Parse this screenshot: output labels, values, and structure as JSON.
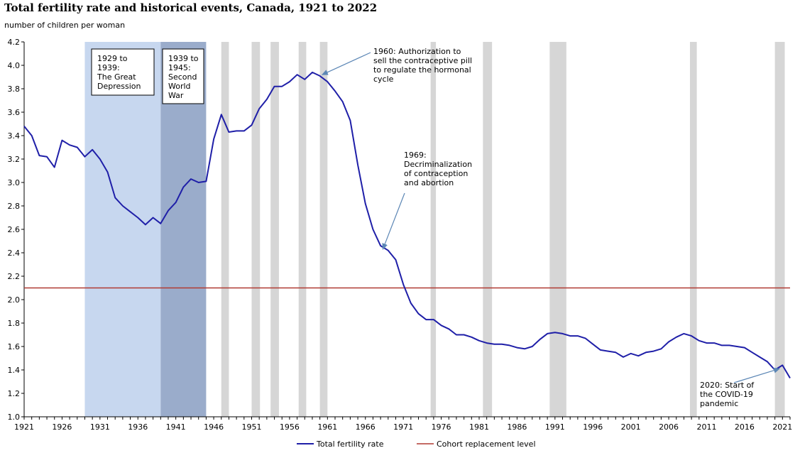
{
  "chart_data": {
    "type": "line",
    "title": "Total fertility rate and historical events, Canada, 1921 to 2022",
    "ylabel": "number of children per woman",
    "xlabel": "",
    "xlim": [
      1921,
      2022
    ],
    "ylim": [
      1.0,
      4.2
    ],
    "y_ticks": [
      "1.0",
      "1.2",
      "1.4",
      "1.6",
      "1.8",
      "2.0",
      "2.2",
      "2.4",
      "2.6",
      "2.8",
      "3.0",
      "3.2",
      "3.4",
      "3.6",
      "3.8",
      "4.0",
      "4.2"
    ],
    "x_ticks": [
      "1921",
      "1926",
      "1931",
      "1936",
      "1941",
      "1946",
      "1951",
      "1956",
      "1961",
      "1966",
      "1971",
      "1976",
      "1981",
      "1986",
      "1991",
      "1996",
      "2001",
      "2006",
      "2011",
      "2016",
      "2021"
    ],
    "colors": {
      "fertility": "#1f1fa8",
      "replacement": "#b03a32",
      "depression_band": "#c7d7ef",
      "war_band": "#9aaccb",
      "recession_band": "#d6d6d6",
      "annotation_arrow": "#5b86b5"
    },
    "series": [
      {
        "name": "Total fertility rate",
        "x": [
          1921,
          1922,
          1923,
          1924,
          1925,
          1926,
          1927,
          1928,
          1929,
          1930,
          1931,
          1932,
          1933,
          1934,
          1935,
          1936,
          1937,
          1938,
          1939,
          1940,
          1941,
          1942,
          1943,
          1944,
          1945,
          1946,
          1947,
          1948,
          1949,
          1950,
          1951,
          1952,
          1953,
          1954,
          1955,
          1956,
          1957,
          1958,
          1959,
          1960,
          1961,
          1962,
          1963,
          1964,
          1965,
          1966,
          1967,
          1968,
          1969,
          1970,
          1971,
          1972,
          1973,
          1974,
          1975,
          1976,
          1977,
          1978,
          1979,
          1980,
          1981,
          1982,
          1983,
          1984,
          1985,
          1986,
          1987,
          1988,
          1989,
          1990,
          1991,
          1992,
          1993,
          1994,
          1995,
          1996,
          1997,
          1998,
          1999,
          2000,
          2001,
          2002,
          2003,
          2004,
          2005,
          2006,
          2007,
          2008,
          2009,
          2010,
          2011,
          2012,
          2013,
          2014,
          2015,
          2016,
          2017,
          2018,
          2019,
          2020,
          2021,
          2022
        ],
        "values": [
          3.48,
          3.4,
          3.23,
          3.22,
          3.13,
          3.36,
          3.32,
          3.3,
          3.22,
          3.28,
          3.2,
          3.09,
          2.87,
          2.8,
          2.75,
          2.7,
          2.64,
          2.7,
          2.65,
          2.76,
          2.83,
          2.96,
          3.03,
          3.0,
          3.01,
          3.37,
          3.58,
          3.43,
          3.44,
          3.44,
          3.49,
          3.63,
          3.71,
          3.82,
          3.82,
          3.86,
          3.92,
          3.88,
          3.94,
          3.91,
          3.86,
          3.78,
          3.69,
          3.53,
          3.15,
          2.82,
          2.6,
          2.46,
          2.42,
          2.34,
          2.13,
          1.97,
          1.88,
          1.83,
          1.83,
          1.78,
          1.75,
          1.7,
          1.7,
          1.68,
          1.65,
          1.63,
          1.62,
          1.62,
          1.61,
          1.59,
          1.58,
          1.6,
          1.66,
          1.71,
          1.72,
          1.71,
          1.69,
          1.69,
          1.67,
          1.62,
          1.57,
          1.56,
          1.55,
          1.51,
          1.54,
          1.52,
          1.55,
          1.56,
          1.58,
          1.64,
          1.68,
          1.71,
          1.69,
          1.65,
          1.63,
          1.63,
          1.61,
          1.61,
          1.6,
          1.59,
          1.55,
          1.51,
          1.47,
          1.4,
          1.44,
          1.33
        ]
      },
      {
        "name": "Cohort replacement level",
        "constant": 2.1
      }
    ],
    "bands": [
      {
        "name": "depression",
        "start": 1929,
        "end": 1939,
        "label_lines": [
          "1929 to",
          "1939:",
          "The Great",
          "Depression"
        ]
      },
      {
        "name": "war",
        "start": 1939,
        "end": 1945,
        "label_lines": [
          "1939 to",
          "1945:",
          "Second",
          "World",
          "War"
        ]
      }
    ],
    "recessions": [
      {
        "start": 1947.0,
        "end": 1948.0
      },
      {
        "start": 1951.0,
        "end": 1952.1
      },
      {
        "start": 1953.5,
        "end": 1954.6
      },
      {
        "start": 1957.2,
        "end": 1958.2
      },
      {
        "start": 1960.0,
        "end": 1961.0
      },
      {
        "start": 1974.6,
        "end": 1975.3
      },
      {
        "start": 1981.5,
        "end": 1982.7
      },
      {
        "start": 1990.3,
        "end": 1992.5
      },
      {
        "start": 2008.8,
        "end": 2009.7
      },
      {
        "start": 2020.0,
        "end": 2021.3
      }
    ],
    "annotations": [
      {
        "lines": [
          "1960: Authorization to",
          "sell the contraceptive pill",
          "to regulate the hormonal",
          "cycle"
        ],
        "target": [
          1960.3,
          3.92
        ],
        "anchor": "upper-right-of-1961"
      },
      {
        "lines": [
          "1969:",
          "Decriminalization",
          "of contraception",
          "and abortion"
        ],
        "target": [
          1968.3,
          2.43
        ],
        "anchor": "above-1969"
      },
      {
        "lines": [
          "2020: Start of",
          "the COVID-19",
          "pandemic"
        ],
        "target": [
          2020.6,
          1.41
        ],
        "anchor": "left-of-2020"
      }
    ],
    "legend": {
      "position": "bottom-center",
      "items": [
        "Total fertility rate",
        "Cohort replacement level"
      ]
    }
  }
}
